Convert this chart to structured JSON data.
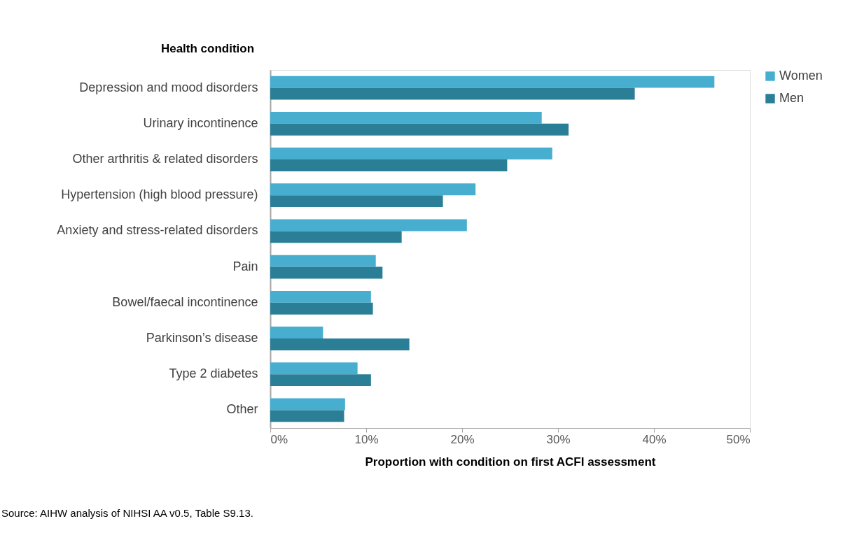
{
  "chart_data": {
    "type": "bar",
    "orientation": "horizontal",
    "ylabel": "Health condition",
    "xlabel": "Proportion with condition on first ACFI assessment",
    "categories": [
      "Depression and mood disorders",
      "Urinary incontinence",
      "Other arthritis & related disorders",
      "Hypertension (high blood pressure)",
      "Anxiety and stress-related disorders",
      "Pain",
      "Bowel/faecal incontinence",
      "Parkinson’s disease",
      "Type 2 diabetes",
      "Other"
    ],
    "series": [
      {
        "name": "Women",
        "color": "#47aed0",
        "values": [
          46.3,
          28.3,
          29.4,
          21.4,
          20.5,
          11.0,
          10.5,
          5.5,
          9.1,
          7.8
        ]
      },
      {
        "name": "Men",
        "color": "#2a7f97",
        "values": [
          38.0,
          31.1,
          24.7,
          18.0,
          13.7,
          11.7,
          10.7,
          14.5,
          10.5,
          7.7
        ]
      }
    ],
    "xlim": [
      0,
      50
    ],
    "xticks": [
      {
        "value": 0,
        "label": "0%"
      },
      {
        "value": 10,
        "label": "10%"
      },
      {
        "value": 20,
        "label": "20%"
      },
      {
        "value": 30,
        "label": "30%"
      },
      {
        "value": 40,
        "label": "40%"
      },
      {
        "value": 50,
        "label": "50%"
      }
    ],
    "legend": "right",
    "annotations": [
      "Source: AIHW analysis of NIHSI AA v0.5, Table S9.13."
    ]
  }
}
